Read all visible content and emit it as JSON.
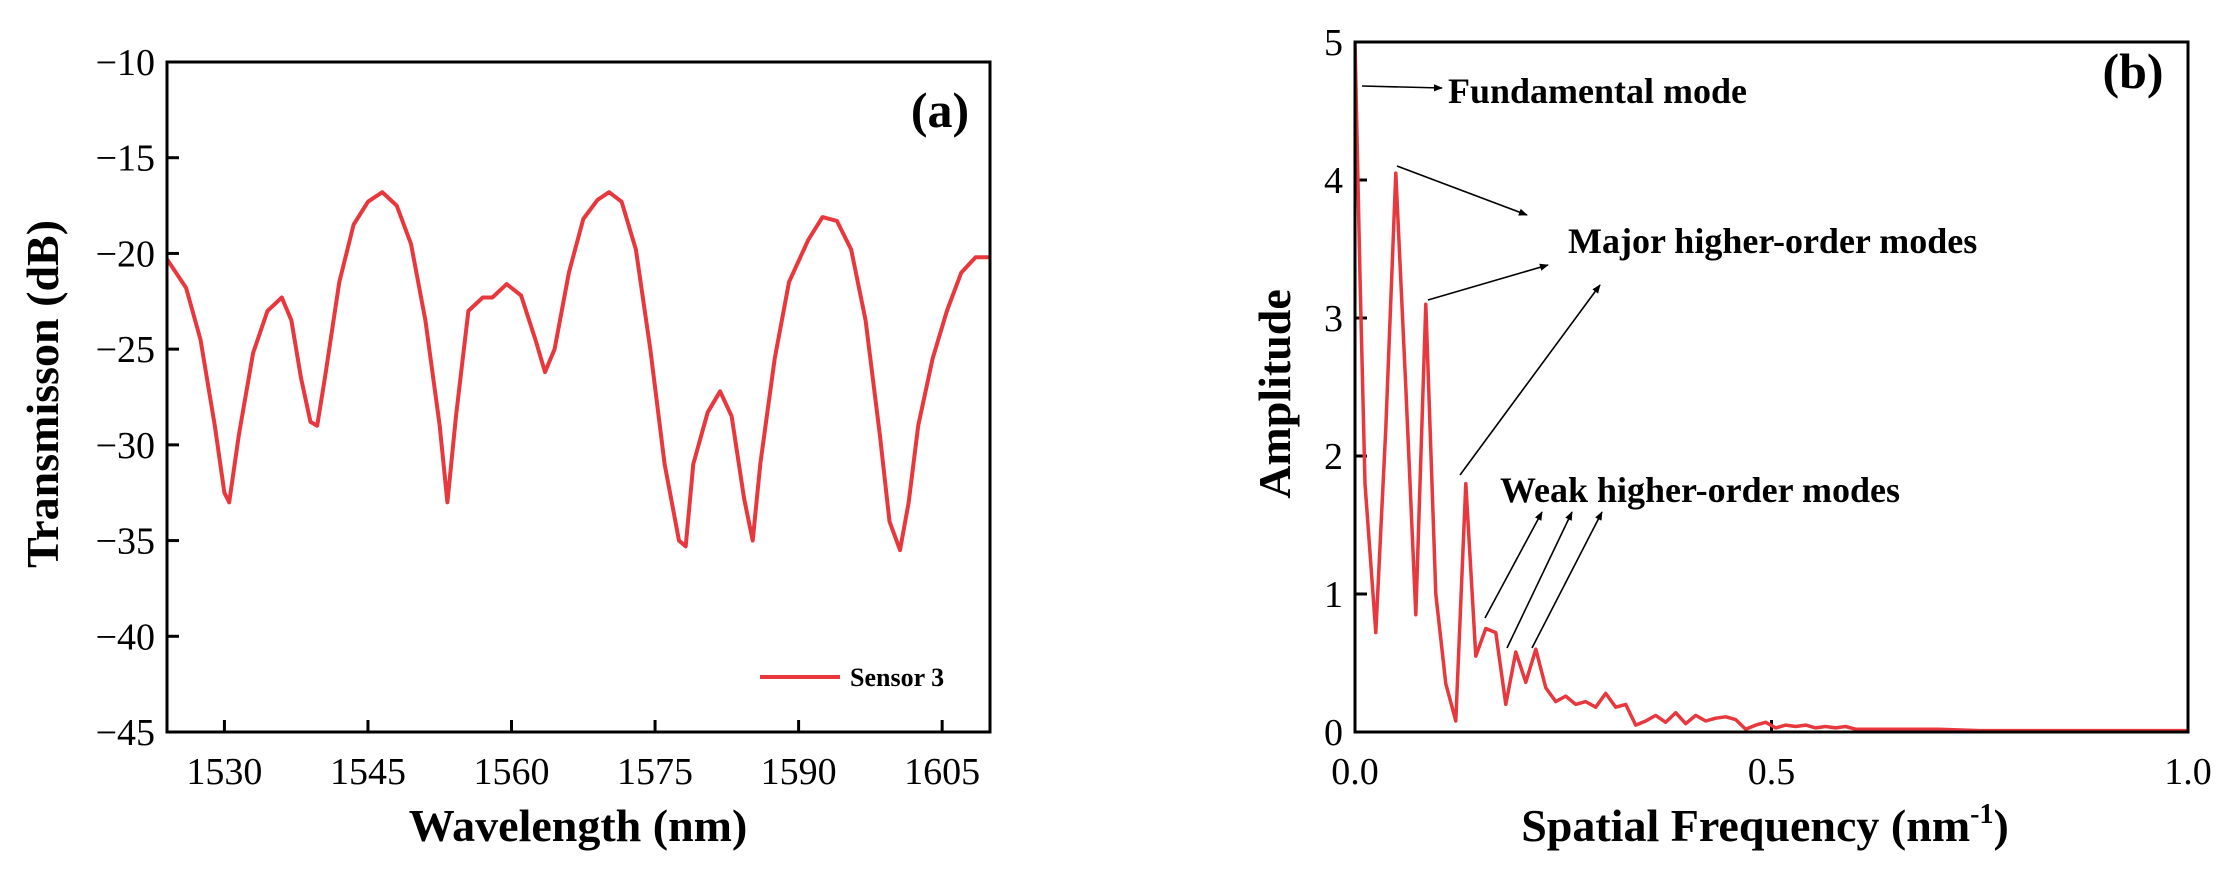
{
  "colors": {
    "series": "#e8383d",
    "axis": "#000000"
  },
  "panel_a": {
    "panel_label": "(a)",
    "xlabel": "Wavelength (nm)",
    "ylabel": "Transmisson (dB)",
    "legend": "Sensor 3",
    "xticks": [
      "1530",
      "1545",
      "1560",
      "1575",
      "1590",
      "1605"
    ],
    "yticks": [
      "−10",
      "−15",
      "−20",
      "−25",
      "−30",
      "−35",
      "−40",
      "−45"
    ]
  },
  "panel_b": {
    "panel_label": "(b)",
    "xlabel_main": "Spatial Frequency (nm",
    "xlabel_sup": "-1",
    "xlabel_end": ")",
    "ylabel": "Amplitude",
    "xticks": [
      "0.0",
      "0.5",
      "1.0"
    ],
    "yticks": [
      "0",
      "1",
      "2",
      "3",
      "4",
      "5"
    ],
    "annotations": {
      "fundamental": "Fundamental mode",
      "major": "Major higher-order modes",
      "weak": "Weak higher-order modes"
    }
  },
  "chart_data": [
    {
      "type": "line",
      "title": "",
      "xlabel": "Wavelength (nm)",
      "ylabel": "Transmisson (dB)",
      "xlim": [
        1524,
        1610
      ],
      "ylim": [
        -45,
        -10
      ],
      "legend_position": "bottom-right",
      "series": [
        {
          "name": "Sensor 3",
          "x": [
            1524,
            1526,
            1527.5,
            1529,
            1530,
            1530.5,
            1531.5,
            1533,
            1534.5,
            1536,
            1537,
            1538,
            1539,
            1539.7,
            1540.5,
            1542,
            1543.5,
            1545,
            1546.5,
            1548,
            1549.5,
            1551,
            1552.5,
            1553.3,
            1554.2,
            1555.5,
            1557,
            1558,
            1559.5,
            1561,
            1562.5,
            1563.5,
            1564.5,
            1566,
            1567.5,
            1569,
            1570.2,
            1571.5,
            1573,
            1574.5,
            1576,
            1577.5,
            1578.2,
            1579,
            1580.5,
            1581.8,
            1583,
            1584.3,
            1585.2,
            1586,
            1587.5,
            1589,
            1591,
            1592.5,
            1594,
            1595.5,
            1597,
            1598.5,
            1599.5,
            1600.6,
            1601.5,
            1602.5,
            1604,
            1605.5,
            1607,
            1608.5,
            1610
          ],
          "values": [
            -20.3,
            -21.8,
            -24.5,
            -29.0,
            -32.5,
            -33.0,
            -29.5,
            -25.2,
            -23.0,
            -22.3,
            -23.5,
            -26.5,
            -28.8,
            -29.0,
            -26.5,
            -21.5,
            -18.5,
            -17.3,
            -16.8,
            -17.5,
            -19.5,
            -23.5,
            -29.0,
            -33.0,
            -28.5,
            -23.0,
            -22.3,
            -22.3,
            -21.6,
            -22.2,
            -24.5,
            -26.2,
            -25.0,
            -21.0,
            -18.2,
            -17.2,
            -16.8,
            -17.3,
            -19.8,
            -25.0,
            -31.0,
            -35.0,
            -35.3,
            -31.0,
            -28.3,
            -27.2,
            -28.5,
            -32.8,
            -35.0,
            -31.0,
            -25.5,
            -21.5,
            -19.3,
            -18.1,
            -18.3,
            -19.8,
            -23.5,
            -29.5,
            -34.0,
            -35.5,
            -33.0,
            -29.0,
            -25.5,
            -23.0,
            -21.0,
            -20.2,
            -20.2
          ]
        }
      ]
    },
    {
      "type": "line",
      "title": "",
      "xlabel": "Spatial Frequency (nm-1)",
      "ylabel": "Amplitude",
      "xlim": [
        0,
        1.0
      ],
      "ylim": [
        0,
        5
      ],
      "series": [
        {
          "name": "",
          "x": [
            0.0,
            0.006,
            0.012,
            0.025,
            0.037,
            0.049,
            0.061,
            0.073,
            0.085,
            0.097,
            0.109,
            0.121,
            0.133,
            0.145,
            0.157,
            0.169,
            0.181,
            0.193,
            0.205,
            0.217,
            0.229,
            0.241,
            0.253,
            0.265,
            0.277,
            0.289,
            0.301,
            0.313,
            0.325,
            0.337,
            0.349,
            0.361,
            0.373,
            0.385,
            0.397,
            0.409,
            0.421,
            0.433,
            0.445,
            0.457,
            0.469,
            0.481,
            0.493,
            0.505,
            0.517,
            0.529,
            0.541,
            0.553,
            0.565,
            0.577,
            0.589,
            0.601,
            0.625,
            0.65,
            0.7,
            0.75,
            0.8,
            0.85,
            0.9,
            0.95,
            1.0
          ],
          "values": [
            5.0,
            3.3,
            1.8,
            0.72,
            2.2,
            4.05,
            2.5,
            0.85,
            3.1,
            1.0,
            0.35,
            0.08,
            1.8,
            0.55,
            0.75,
            0.72,
            0.2,
            0.58,
            0.36,
            0.6,
            0.32,
            0.22,
            0.26,
            0.2,
            0.22,
            0.18,
            0.28,
            0.18,
            0.2,
            0.05,
            0.08,
            0.12,
            0.07,
            0.14,
            0.06,
            0.12,
            0.08,
            0.1,
            0.11,
            0.09,
            0.02,
            0.05,
            0.07,
            0.03,
            0.05,
            0.04,
            0.05,
            0.03,
            0.04,
            0.03,
            0.04,
            0.02,
            0.02,
            0.02,
            0.02,
            0.01,
            0.01,
            0.01,
            0.01,
            0.01,
            0.01
          ]
        }
      ]
    }
  ]
}
